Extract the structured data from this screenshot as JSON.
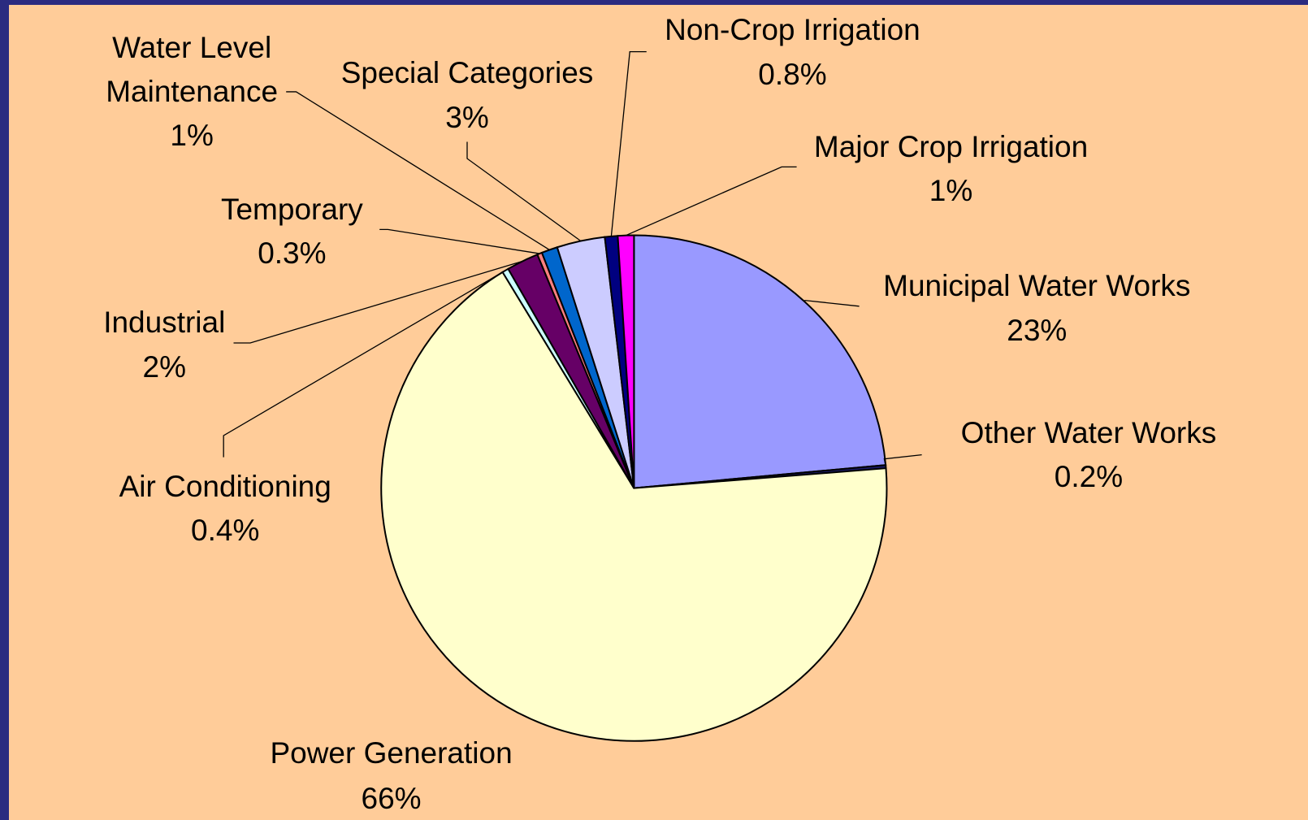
{
  "chart_data": {
    "type": "pie",
    "categories": [
      "Municipal Water Works",
      "Other Water Works",
      "Power Generation",
      "Air Conditioning",
      "Industrial",
      "Temporary",
      "Water Level Maintenance",
      "Special Categories",
      "Non-Crop Irrigation",
      "Major Crop Irrigation"
    ],
    "values": [
      23,
      0.2,
      66,
      0.4,
      2,
      0.3,
      1,
      3,
      0.8,
      1
    ],
    "value_labels": [
      "23%",
      "0.2%",
      "66%",
      "0.4%",
      "2%",
      "0.3%",
      "1%",
      "3%",
      "0.8%",
      "1%"
    ],
    "colors": [
      "#9999ff",
      "#1a1a66",
      "#ffffcc",
      "#ccffff",
      "#660066",
      "#ff8080",
      "#0066cc",
      "#ccccff",
      "#000080",
      "#ff00ff"
    ]
  }
}
